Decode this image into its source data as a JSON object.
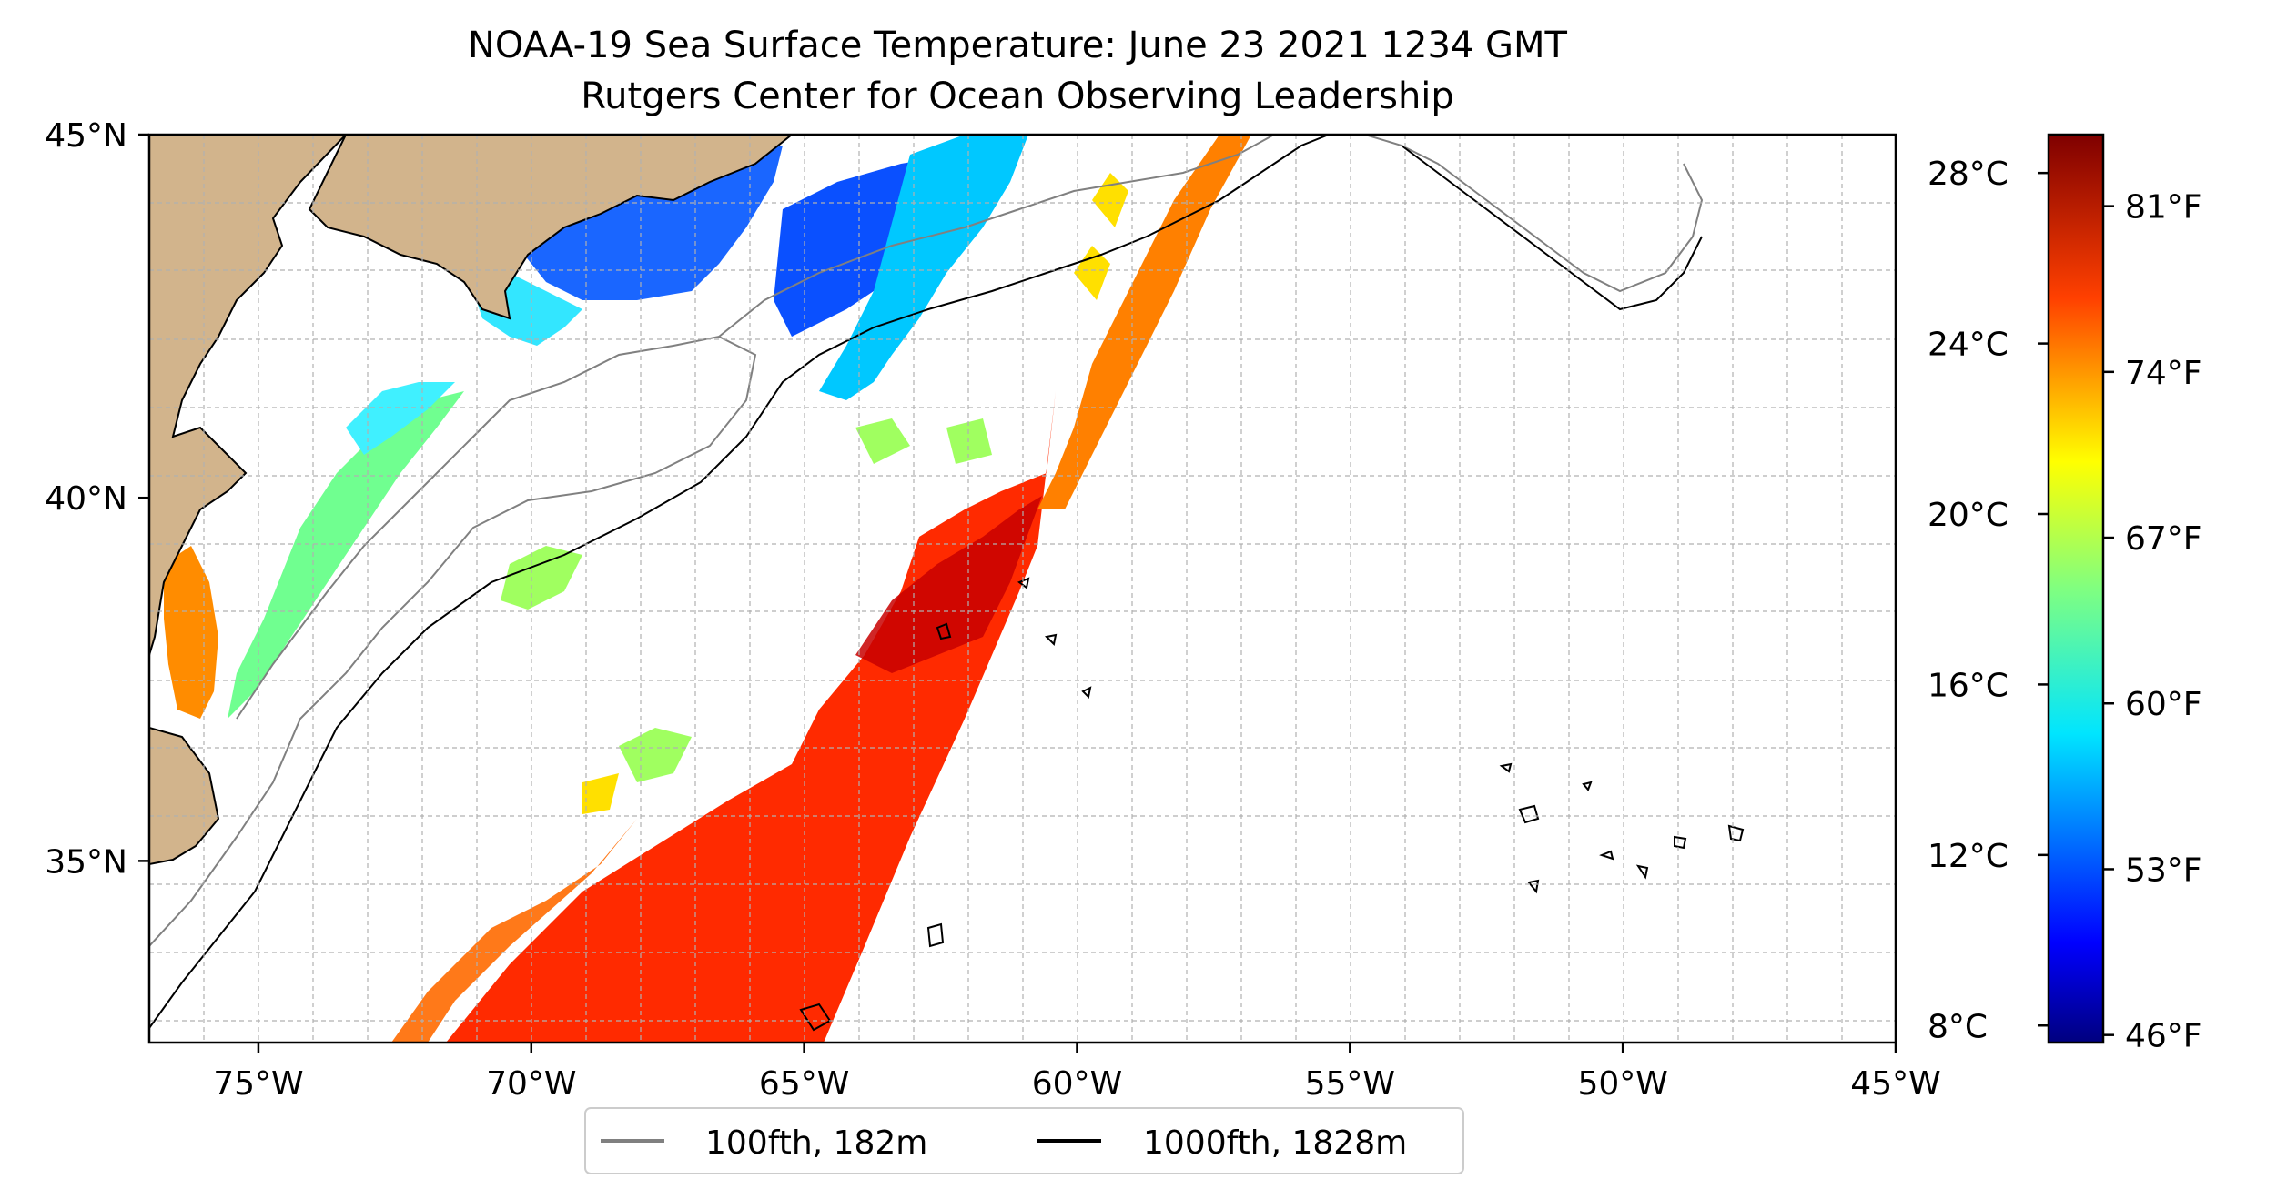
{
  "title_line1": "NOAA-19 Sea Surface Temperature: June 23 2021 1234 GMT",
  "title_line2": "Rutgers Center for Ocean Observing Leadership",
  "map": {
    "lon_range": [
      -77,
      -45
    ],
    "lat_range": [
      32.5,
      45
    ],
    "lat_tick_labels": [
      "45°N",
      "40°N",
      "35°N"
    ],
    "lat_ticks": [
      45,
      40,
      35
    ],
    "lon_tick_labels": [
      "75°W",
      "70°W",
      "65°W",
      "60°W",
      "55°W",
      "50°W",
      "45°W"
    ],
    "lon_ticks": [
      -75,
      -70,
      -65,
      -60,
      -55,
      -50,
      -45
    ],
    "grid": true,
    "land_color": "#d2b48c",
    "background_color": "#ffffff"
  },
  "colorbar": {
    "colormap": "jet",
    "celsius_labels": [
      "28°C",
      "24°C",
      "20°C",
      "16°C",
      "12°C",
      "8°C"
    ],
    "celsius_values": [
      28,
      24,
      20,
      16,
      12,
      8
    ],
    "fahrenheit_labels": [
      "81°F",
      "74°F",
      "67°F",
      "60°F",
      "53°F",
      "46°F"
    ],
    "fahrenheit_values": [
      81,
      74,
      67,
      60,
      53,
      46
    ],
    "range_c": [
      7.6,
      28.9
    ]
  },
  "legend": {
    "items": [
      {
        "label": "100fth, 182m",
        "color": "#808080"
      },
      {
        "label": "1000fth, 1828m",
        "color": "#000000"
      }
    ]
  }
}
